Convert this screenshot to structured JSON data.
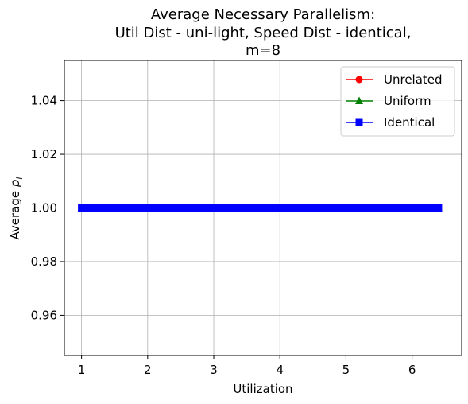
{
  "chart_data": {
    "type": "line",
    "title_lines": [
      "Average Necessary Parallelism:",
      "Util Dist - uni-light, Speed Dist - identical,",
      "m=8"
    ],
    "xlabel": "Utilization",
    "ylabel_prefix": "Average ",
    "ylabel_var": "p",
    "ylabel_sub": "i",
    "xlim": [
      0.74,
      6.75
    ],
    "ylim": [
      0.945,
      1.055
    ],
    "xticks": [
      1,
      2,
      3,
      4,
      5,
      6
    ],
    "xtick_labels": [
      "1",
      "2",
      "3",
      "4",
      "5",
      "6"
    ],
    "yticks": [
      0.96,
      0.98,
      1.0,
      1.02,
      1.04
    ],
    "ytick_labels": [
      "0.96",
      "0.98",
      "1.00",
      "1.02",
      "1.04"
    ],
    "grid": true,
    "legend_position": "top-right",
    "x": [
      1.0,
      1.1,
      1.2,
      1.3,
      1.4,
      1.5,
      1.6,
      1.7,
      1.8,
      1.9,
      2.0,
      2.1,
      2.2,
      2.3,
      2.4,
      2.5,
      2.6,
      2.7,
      2.8,
      2.9,
      3.0,
      3.1,
      3.2,
      3.3,
      3.4,
      3.5,
      3.6,
      3.7,
      3.8,
      3.9,
      4.0,
      4.1,
      4.2,
      4.3,
      4.4,
      4.5,
      4.6,
      4.7,
      4.8,
      4.9,
      5.0,
      5.1,
      5.2,
      5.3,
      5.4,
      5.5,
      5.6,
      5.7,
      5.8,
      5.9,
      6.0,
      6.1,
      6.2,
      6.3,
      6.4
    ],
    "series": [
      {
        "name": "Unrelated",
        "color": "#ff0000",
        "marker": "circle",
        "value": 1.0
      },
      {
        "name": "Uniform",
        "color": "#008000",
        "marker": "triangle",
        "value": 1.0
      },
      {
        "name": "Identical",
        "color": "#0000ff",
        "marker": "square",
        "value": 1.0
      }
    ]
  }
}
